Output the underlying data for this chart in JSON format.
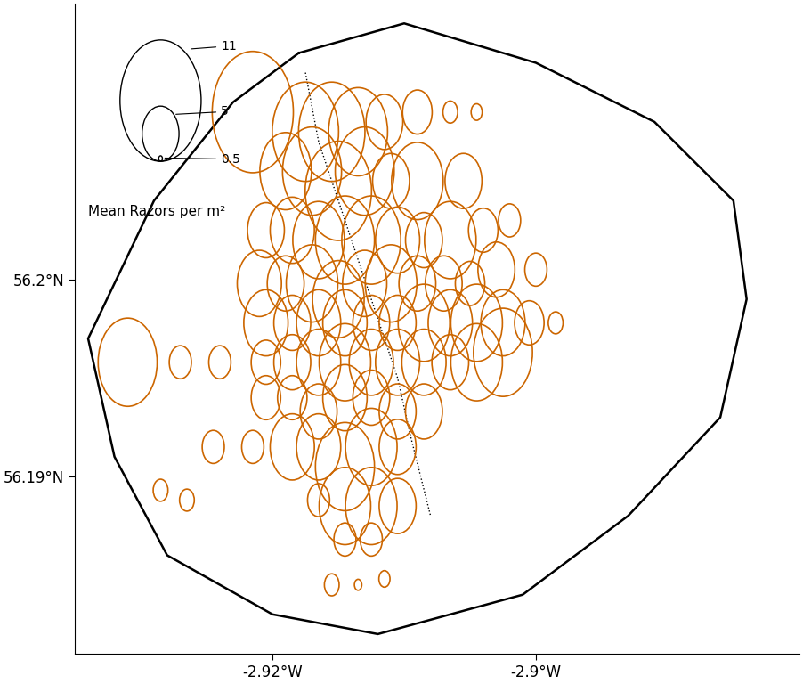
{
  "xlim": [
    -2.935,
    -2.88
  ],
  "ylim": [
    56.181,
    56.214
  ],
  "xticks": [
    -2.92,
    -2.9
  ],
  "yticks": [
    56.19,
    56.2
  ],
  "xticklabels": [
    "-2.92°W",
    "-2.9°W"
  ],
  "yticklabels": [
    "56.19°N",
    "56.2°N"
  ],
  "boundary_lon": [
    -2.918,
    -2.91,
    -2.9,
    -2.891,
    -2.885,
    -2.884,
    -2.886,
    -2.893,
    -2.901,
    -2.912,
    -2.92,
    -2.928,
    -2.932,
    -2.934,
    -2.929,
    -2.923,
    -2.918
  ],
  "boundary_lat": [
    56.2115,
    56.213,
    56.211,
    56.208,
    56.204,
    56.199,
    56.193,
    56.188,
    56.184,
    56.182,
    56.183,
    56.186,
    56.191,
    56.197,
    56.204,
    56.209,
    56.2115
  ],
  "dotted_line_lon": [
    -2.9175,
    -2.9165,
    -2.9145,
    -2.9125,
    -2.9105,
    -2.9095,
    -2.908
  ],
  "dotted_line_lat": [
    56.2105,
    56.207,
    56.203,
    56.199,
    56.195,
    56.192,
    56.188
  ],
  "circle_color": "#CC6600",
  "legend_sizes": [
    11,
    5,
    0.5
  ],
  "legend_label": "Mean Razors per m²",
  "scale_factor": 0.00028,
  "points": [
    {
      "lon": -2.9215,
      "lat": 56.2085,
      "val": 11
    },
    {
      "lon": -2.9175,
      "lat": 56.2075,
      "val": 9
    },
    {
      "lon": -2.9155,
      "lat": 56.2075,
      "val": 9
    },
    {
      "lon": -2.9135,
      "lat": 56.2075,
      "val": 8
    },
    {
      "lon": -2.9115,
      "lat": 56.208,
      "val": 5
    },
    {
      "lon": -2.909,
      "lat": 56.2085,
      "val": 4
    },
    {
      "lon": -2.9065,
      "lat": 56.2085,
      "val": 2
    },
    {
      "lon": -2.9045,
      "lat": 56.2085,
      "val": 1.5
    },
    {
      "lon": -2.919,
      "lat": 56.2055,
      "val": 7
    },
    {
      "lon": -2.917,
      "lat": 56.2055,
      "val": 8
    },
    {
      "lon": -2.915,
      "lat": 56.2045,
      "val": 9
    },
    {
      "lon": -2.913,
      "lat": 56.2055,
      "val": 8
    },
    {
      "lon": -2.911,
      "lat": 56.205,
      "val": 5
    },
    {
      "lon": -2.909,
      "lat": 56.205,
      "val": 7
    },
    {
      "lon": -2.9055,
      "lat": 56.205,
      "val": 5
    },
    {
      "lon": -2.9205,
      "lat": 56.2025,
      "val": 5
    },
    {
      "lon": -2.9185,
      "lat": 56.2025,
      "val": 6
    },
    {
      "lon": -2.9165,
      "lat": 56.202,
      "val": 7
    },
    {
      "lon": -2.9145,
      "lat": 56.202,
      "val": 8
    },
    {
      "lon": -2.9125,
      "lat": 56.202,
      "val": 8
    },
    {
      "lon": -2.9105,
      "lat": 56.202,
      "val": 6
    },
    {
      "lon": -2.9085,
      "lat": 56.202,
      "val": 5
    },
    {
      "lon": -2.9065,
      "lat": 56.202,
      "val": 7
    },
    {
      "lon": -2.904,
      "lat": 56.2025,
      "val": 4
    },
    {
      "lon": -2.902,
      "lat": 56.203,
      "val": 3
    },
    {
      "lon": -2.921,
      "lat": 56.1998,
      "val": 6
    },
    {
      "lon": -2.919,
      "lat": 56.1998,
      "val": 5
    },
    {
      "lon": -2.917,
      "lat": 56.1998,
      "val": 7
    },
    {
      "lon": -2.915,
      "lat": 56.199,
      "val": 7
    },
    {
      "lon": -2.913,
      "lat": 56.1998,
      "val": 6
    },
    {
      "lon": -2.911,
      "lat": 56.1998,
      "val": 7
    },
    {
      "lon": -2.909,
      "lat": 56.1998,
      "val": 5
    },
    {
      "lon": -2.907,
      "lat": 56.1998,
      "val": 5
    },
    {
      "lon": -2.905,
      "lat": 56.1998,
      "val": 4
    },
    {
      "lon": -2.903,
      "lat": 56.2005,
      "val": 5
    },
    {
      "lon": -2.9,
      "lat": 56.2005,
      "val": 3
    },
    {
      "lon": -2.9205,
      "lat": 56.1978,
      "val": 6
    },
    {
      "lon": -2.9185,
      "lat": 56.1978,
      "val": 5
    },
    {
      "lon": -2.9165,
      "lat": 56.1978,
      "val": 6
    },
    {
      "lon": -2.9145,
      "lat": 56.1978,
      "val": 6
    },
    {
      "lon": -2.9125,
      "lat": 56.1978,
      "val": 5
    },
    {
      "lon": -2.9105,
      "lat": 56.1978,
      "val": 5
    },
    {
      "lon": -2.9085,
      "lat": 56.1978,
      "val": 7
    },
    {
      "lon": -2.9065,
      "lat": 56.1978,
      "val": 6
    },
    {
      "lon": -2.9045,
      "lat": 56.1978,
      "val": 7
    },
    {
      "lon": -2.9025,
      "lat": 56.1978,
      "val": 6
    },
    {
      "lon": -2.9005,
      "lat": 56.1978,
      "val": 4
    },
    {
      "lon": -2.8985,
      "lat": 56.1978,
      "val": 2
    },
    {
      "lon": -2.931,
      "lat": 56.1958,
      "val": 8
    },
    {
      "lon": -2.927,
      "lat": 56.1958,
      "val": 3
    },
    {
      "lon": -2.924,
      "lat": 56.1958,
      "val": 3
    },
    {
      "lon": -2.9205,
      "lat": 56.1958,
      "val": 4
    },
    {
      "lon": -2.9185,
      "lat": 56.1958,
      "val": 5
    },
    {
      "lon": -2.9165,
      "lat": 56.1958,
      "val": 6
    },
    {
      "lon": -2.9145,
      "lat": 56.1958,
      "val": 7
    },
    {
      "lon": -2.9125,
      "lat": 56.1958,
      "val": 6
    },
    {
      "lon": -2.9105,
      "lat": 56.1958,
      "val": 6
    },
    {
      "lon": -2.9085,
      "lat": 56.1958,
      "val": 6
    },
    {
      "lon": -2.9065,
      "lat": 56.1958,
      "val": 5
    },
    {
      "lon": -2.9045,
      "lat": 56.1958,
      "val": 7
    },
    {
      "lon": -2.9025,
      "lat": 56.1963,
      "val": 8
    },
    {
      "lon": -2.9205,
      "lat": 56.194,
      "val": 4
    },
    {
      "lon": -2.9185,
      "lat": 56.194,
      "val": 4
    },
    {
      "lon": -2.9165,
      "lat": 56.1933,
      "val": 5
    },
    {
      "lon": -2.9145,
      "lat": 56.194,
      "val": 6
    },
    {
      "lon": -2.9125,
      "lat": 56.194,
      "val": 5
    },
    {
      "lon": -2.9105,
      "lat": 56.1933,
      "val": 5
    },
    {
      "lon": -2.9085,
      "lat": 56.1933,
      "val": 5
    },
    {
      "lon": -2.9185,
      "lat": 56.1915,
      "val": 6
    },
    {
      "lon": -2.9165,
      "lat": 56.1915,
      "val": 6
    },
    {
      "lon": -2.9145,
      "lat": 56.1905,
      "val": 8
    },
    {
      "lon": -2.9125,
      "lat": 56.1915,
      "val": 7
    },
    {
      "lon": -2.9105,
      "lat": 56.1915,
      "val": 5
    },
    {
      "lon": -2.9245,
      "lat": 56.1915,
      "val": 3
    },
    {
      "lon": -2.9215,
      "lat": 56.1915,
      "val": 3
    },
    {
      "lon": -2.9145,
      "lat": 56.1885,
      "val": 7
    },
    {
      "lon": -2.9125,
      "lat": 56.1885,
      "val": 7
    },
    {
      "lon": -2.9165,
      "lat": 56.1888,
      "val": 3
    },
    {
      "lon": -2.9105,
      "lat": 56.1885,
      "val": 5
    },
    {
      "lon": -2.9285,
      "lat": 56.1893,
      "val": 2
    },
    {
      "lon": -2.9265,
      "lat": 56.1888,
      "val": 2
    },
    {
      "lon": -2.9145,
      "lat": 56.1868,
      "val": 3
    },
    {
      "lon": -2.9125,
      "lat": 56.1868,
      "val": 3
    },
    {
      "lon": -2.9155,
      "lat": 56.1845,
      "val": 2
    },
    {
      "lon": -2.9135,
      "lat": 56.1845,
      "val": 1
    },
    {
      "lon": -2.9115,
      "lat": 56.1848,
      "val": 1.5
    }
  ]
}
